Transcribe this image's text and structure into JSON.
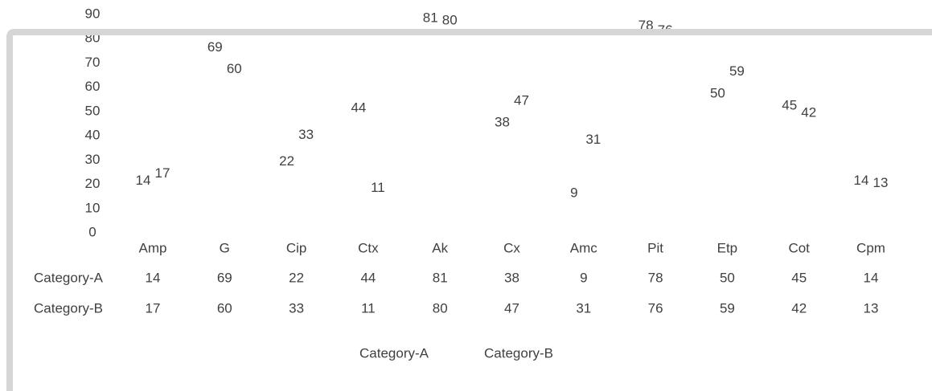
{
  "chart_data": {
    "type": "line",
    "categories": [
      "Amp",
      "G",
      "Cip",
      "Ctx",
      "Ak",
      "Cx",
      "Amc",
      "Pit",
      "Etp",
      "Cot",
      "Cpm"
    ],
    "series": [
      {
        "name": "Category-A",
        "values": [
          14,
          69,
          22,
          44,
          81,
          38,
          9,
          78,
          50,
          45,
          14
        ]
      },
      {
        "name": "Category-B",
        "values": [
          17,
          60,
          33,
          11,
          80,
          47,
          31,
          76,
          59,
          42,
          13
        ]
      }
    ],
    "ylim": [
      0,
      90
    ],
    "yticks": [
      0,
      10,
      20,
      30,
      40,
      50,
      60,
      70,
      80,
      90
    ],
    "data_table": true,
    "legend": "bottom"
  }
}
